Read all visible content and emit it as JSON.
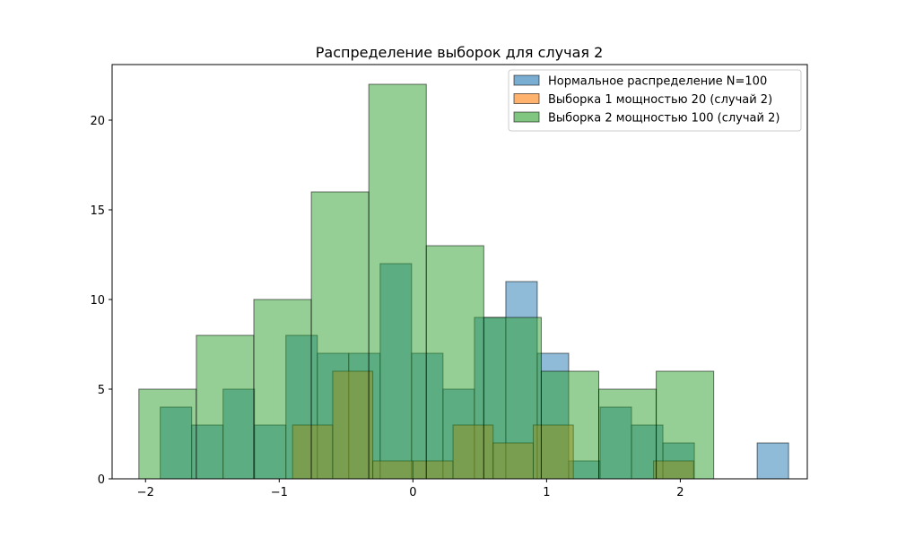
{
  "chart_data": {
    "type": "bar",
    "subtype": "histogram-overlay",
    "title": "Распределение выборок для случая 2",
    "xlabel": "",
    "ylabel": "",
    "xlim": [
      -2.25,
      2.95
    ],
    "ylim": [
      0,
      23.1
    ],
    "xticks": [
      -2,
      -1,
      0,
      1,
      2
    ],
    "xtick_labels": [
      "−2",
      "−1",
      "0",
      "1",
      "2"
    ],
    "yticks": [
      0,
      5,
      10,
      15,
      20
    ],
    "ytick_labels": [
      "0",
      "5",
      "10",
      "15",
      "20"
    ],
    "grid": false,
    "legend_position": "top-right",
    "series": [
      {
        "name": "Нормальное распределение N=100",
        "color": "#1f77b4",
        "bin_edges": [
          -1.89,
          -1.655,
          -1.42,
          -1.185,
          -0.95,
          -0.715,
          -0.48,
          -0.245,
          -0.01,
          0.225,
          0.46,
          0.695,
          0.93,
          1.165,
          1.4,
          1.635,
          1.87,
          2.105,
          2.34,
          2.575,
          2.81
        ],
        "counts": [
          4,
          3,
          5,
          3,
          8,
          7,
          7,
          12,
          7,
          5,
          9,
          11,
          7,
          1,
          4,
          3,
          2,
          0,
          0,
          2
        ]
      },
      {
        "name": "Выборка 1 мощностью 20 (случай 2)",
        "color": "#ff7f0e",
        "bin_edges": [
          -0.9,
          -0.6,
          -0.3,
          0.0,
          0.3,
          0.6,
          0.9,
          1.2,
          1.5,
          1.8,
          2.1
        ],
        "counts": [
          3,
          6,
          1,
          1,
          3,
          2,
          3,
          0,
          0,
          1
        ]
      },
      {
        "name": "Выборка 2 мощностью 100 (случай 2)",
        "color": "#2ca02c",
        "bin_edges": [
          -2.05,
          -1.62,
          -1.19,
          -0.76,
          -0.33,
          0.1,
          0.53,
          0.96,
          1.39,
          1.82,
          2.25
        ],
        "counts": [
          5,
          8,
          10,
          16,
          22,
          13,
          9,
          6,
          5,
          6
        ]
      }
    ]
  }
}
